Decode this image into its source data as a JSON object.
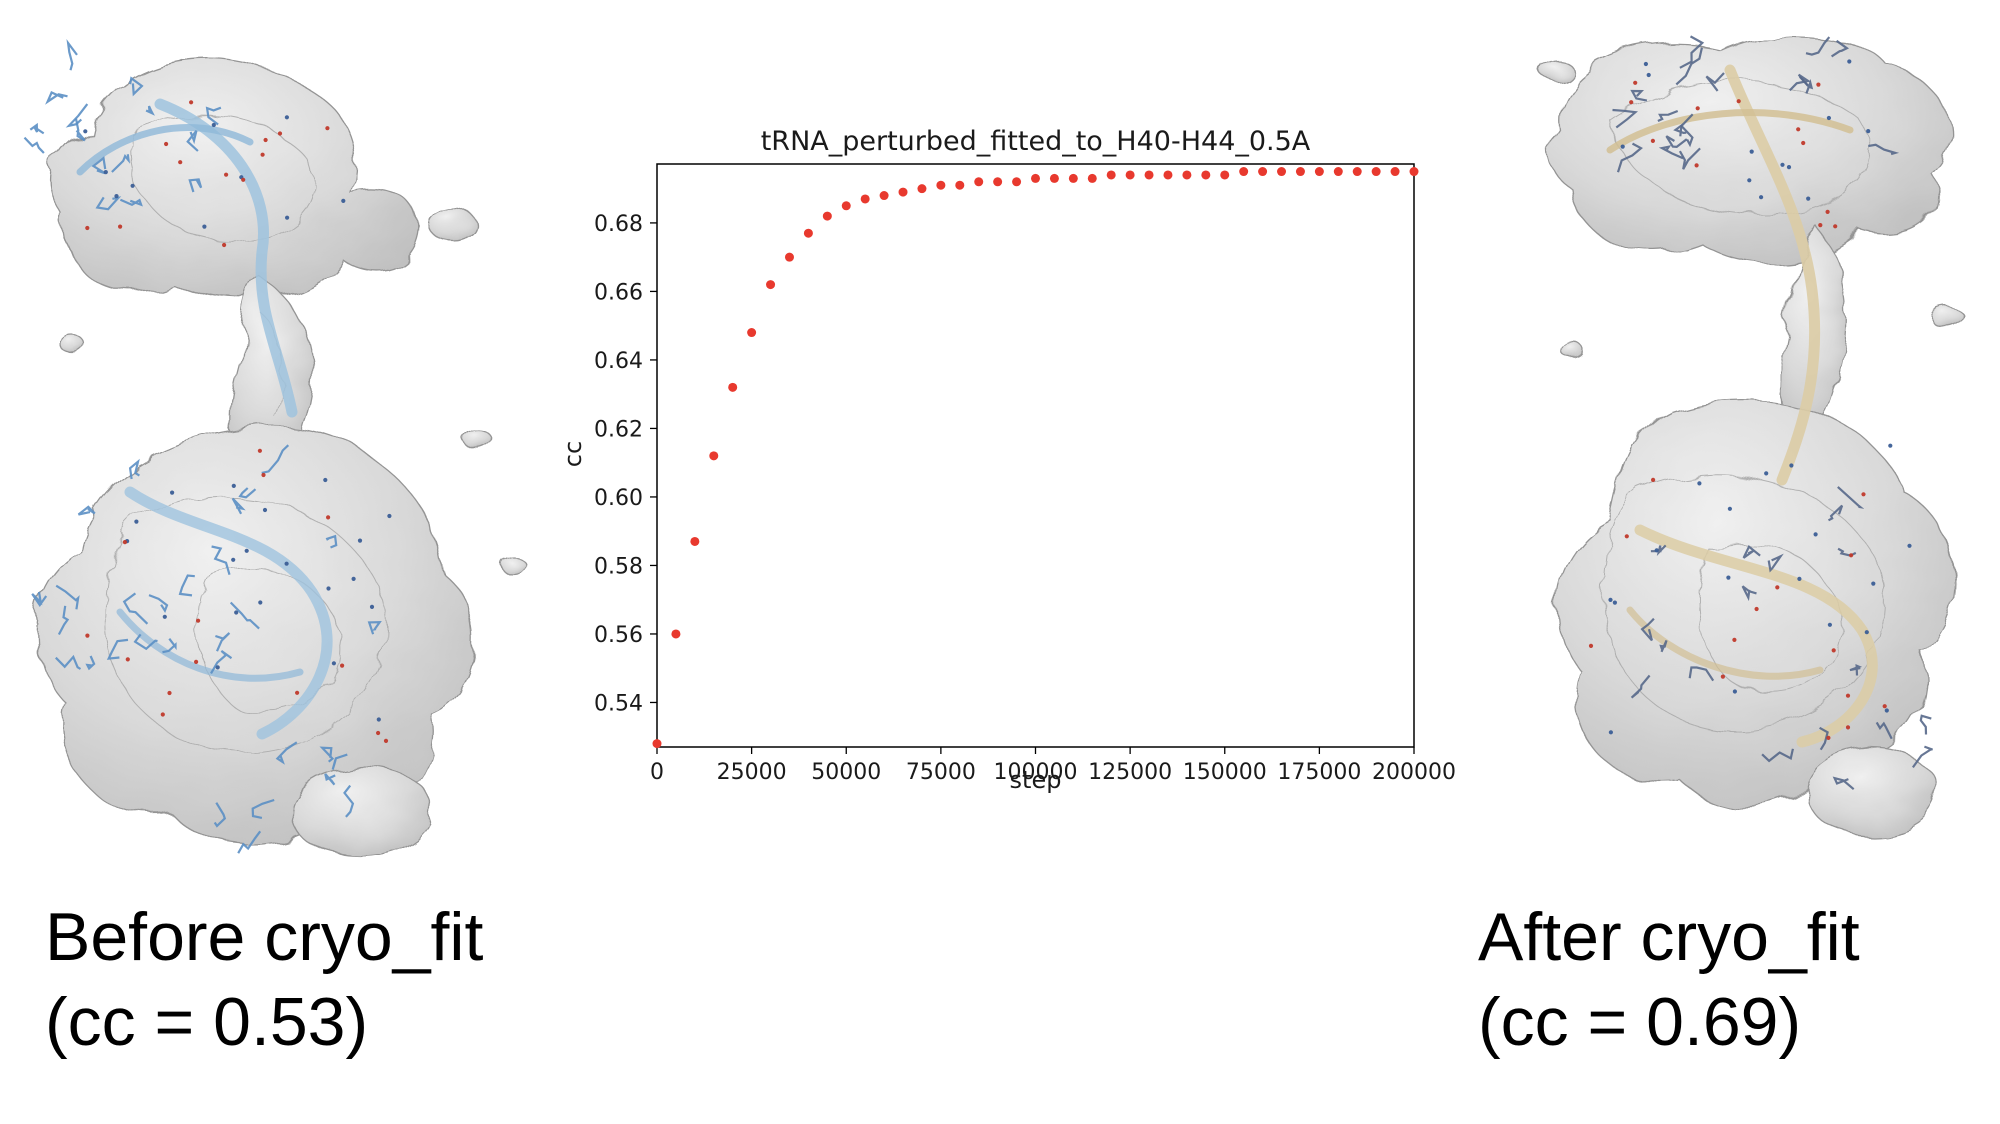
{
  "captions": {
    "before": {
      "line1": "Before cryo_fit",
      "line2": "(cc = 0.53)"
    },
    "after": {
      "line1": "After cryo_fit",
      "line2": "(cc = 0.69)"
    }
  },
  "molecules": {
    "left": {
      "name": "tRNA model before fitting",
      "map_color": "#d8d8d8",
      "model_color": "#5b8fc4"
    },
    "right": {
      "name": "tRNA model after fitting",
      "map_color": "#d8d8d8",
      "model_color": "#d9c7a0"
    }
  },
  "chart_data": {
    "type": "scatter",
    "title": "tRNA_perturbed_fitted_to_H40-H44_0.5A",
    "xlabel": "step",
    "ylabel": "cc",
    "xlim": [
      0,
      200000
    ],
    "ylim": [
      0.527,
      0.6972
    ],
    "grid": false,
    "legend": null,
    "marker_color": "#e8392e",
    "xticks": [
      0,
      25000,
      50000,
      75000,
      100000,
      125000,
      150000,
      175000,
      200000
    ],
    "xtick_labels": [
      "0",
      "25000",
      "50000",
      "75000",
      "100000",
      "125000",
      "150000",
      "175000",
      "200000"
    ],
    "yticks": [
      0.54,
      0.56,
      0.58,
      0.6,
      0.62,
      0.64,
      0.66,
      0.68
    ],
    "ytick_labels": [
      "0.54",
      "0.56",
      "0.58",
      "0.60",
      "0.62",
      "0.64",
      "0.66",
      "0.68"
    ],
    "x": [
      0,
      5000,
      10000,
      15000,
      20000,
      25000,
      30000,
      35000,
      40000,
      45000,
      50000,
      55000,
      60000,
      65000,
      70000,
      75000,
      80000,
      85000,
      90000,
      95000,
      100000,
      105000,
      110000,
      115000,
      120000,
      125000,
      130000,
      135000,
      140000,
      145000,
      150000,
      155000,
      160000,
      165000,
      170000,
      175000,
      180000,
      185000,
      190000,
      195000,
      200000
    ],
    "y": [
      0.528,
      0.56,
      0.587,
      0.612,
      0.632,
      0.648,
      0.662,
      0.67,
      0.677,
      0.682,
      0.685,
      0.687,
      0.688,
      0.689,
      0.69,
      0.691,
      0.691,
      0.692,
      0.692,
      0.692,
      0.693,
      0.693,
      0.693,
      0.693,
      0.694,
      0.694,
      0.694,
      0.694,
      0.694,
      0.694,
      0.694,
      0.695,
      0.695,
      0.695,
      0.695,
      0.695,
      0.695,
      0.695,
      0.695,
      0.695,
      0.695
    ]
  }
}
